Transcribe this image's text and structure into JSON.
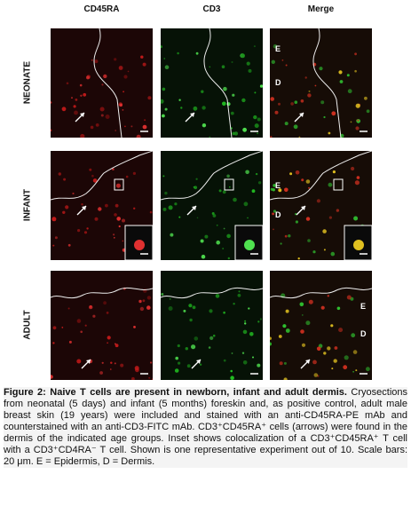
{
  "figure": {
    "columns": [
      "CD45RA",
      "CD3",
      "Merge"
    ],
    "rows": [
      "NEONATE",
      "INFANT",
      "ADULT"
    ],
    "merge_labels": [
      [
        "E",
        "D"
      ],
      [
        "E",
        "D"
      ],
      [
        "E",
        "D"
      ]
    ],
    "caption": {
      "title": "Figure 2: Naive T cells are present in newborn, infant and adult dermis.",
      "body": "Cryosections from neonatal (5 days) and infant (5 months) foreskin and, as positive control, adult male breast skin (19 years) were included and stained with an anti-CD45RA-PE mAb and counterstained with an anti-CD3-FITC mAb. CD3⁺CD45RA⁺ cells (arrows) were found in the dermis of the indicated age groups. Inset shows colocalization of a CD3⁺CD45RA⁺ T cell with a CD3⁺CD4RA⁻ T cell. Shown is one representative experiment out of 10. Scale bars: 20 μm. E = Epidermis, D = Dermis."
    }
  }
}
